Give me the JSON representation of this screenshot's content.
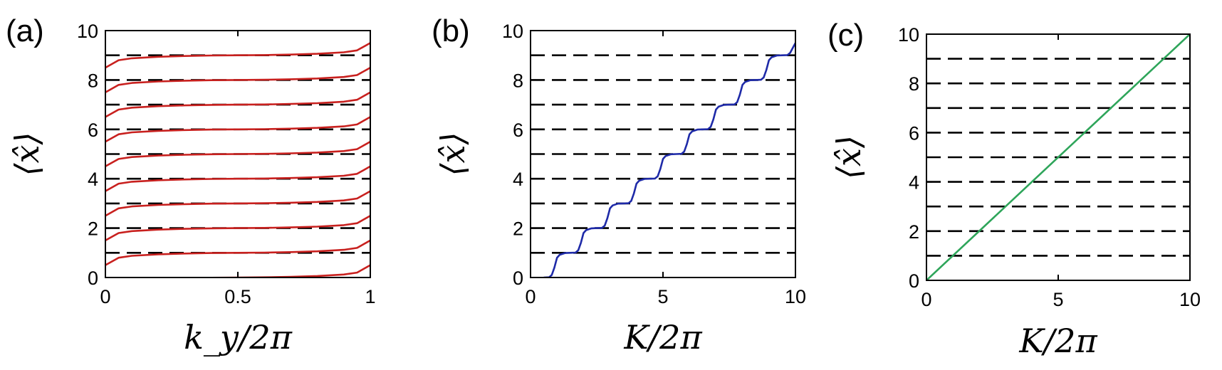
{
  "chart_data": [
    {
      "type": "line",
      "panel_label": "(a)",
      "xlabel": "k_y/2π",
      "ylabel": "⟨x̂⟩",
      "xlim": [
        0,
        1
      ],
      "ylim": [
        0,
        10
      ],
      "xticks": [
        "0",
        "0.5",
        "1"
      ],
      "xtick_values": [
        0,
        0.5,
        1
      ],
      "yticks": [
        "0",
        "2",
        "4",
        "6",
        "8",
        "10"
      ],
      "ytick_values": [
        0,
        2,
        4,
        6,
        8,
        10
      ],
      "dashed_levels": [
        1,
        2,
        3,
        4,
        5,
        6,
        7,
        8,
        9
      ],
      "color": "#c8201e",
      "x": [
        0,
        0.05,
        0.1,
        0.2,
        0.3,
        0.4,
        0.5,
        0.6,
        0.7,
        0.8,
        0.9,
        0.95,
        1
      ],
      "series": [
        {
          "values": [
            -0.5,
            -0.2,
            -0.12,
            -0.06,
            -0.03,
            -0.01,
            0.0,
            0.01,
            0.03,
            0.06,
            0.12,
            0.2,
            0.5
          ]
        },
        {
          "values": [
            0.5,
            0.8,
            0.88,
            0.94,
            0.97,
            0.99,
            1.0,
            1.01,
            1.03,
            1.06,
            1.12,
            1.2,
            1.5
          ]
        },
        {
          "values": [
            1.5,
            1.8,
            1.88,
            1.94,
            1.97,
            1.99,
            2.0,
            2.01,
            2.03,
            2.06,
            2.12,
            2.2,
            2.5
          ]
        },
        {
          "values": [
            2.5,
            2.8,
            2.88,
            2.94,
            2.97,
            2.99,
            3.0,
            3.01,
            3.03,
            3.06,
            3.12,
            3.2,
            3.5
          ]
        },
        {
          "values": [
            3.5,
            3.8,
            3.88,
            3.94,
            3.97,
            3.99,
            4.0,
            4.01,
            4.03,
            4.06,
            4.12,
            4.2,
            4.5
          ]
        },
        {
          "values": [
            4.5,
            4.8,
            4.88,
            4.94,
            4.97,
            4.99,
            5.0,
            5.01,
            5.03,
            5.06,
            5.12,
            5.2,
            5.5
          ]
        },
        {
          "values": [
            5.5,
            5.8,
            5.88,
            5.94,
            5.97,
            5.99,
            6.0,
            6.01,
            6.03,
            6.06,
            6.12,
            6.2,
            6.5
          ]
        },
        {
          "values": [
            6.5,
            6.8,
            6.88,
            6.94,
            6.97,
            6.99,
            7.0,
            7.01,
            7.03,
            7.06,
            7.12,
            7.2,
            7.5
          ]
        },
        {
          "values": [
            7.5,
            7.8,
            7.88,
            7.94,
            7.97,
            7.99,
            8.0,
            8.01,
            8.03,
            8.06,
            8.12,
            8.2,
            8.5
          ]
        },
        {
          "values": [
            8.5,
            8.8,
            8.88,
            8.94,
            8.97,
            8.99,
            9.0,
            9.01,
            9.03,
            9.06,
            9.12,
            9.2,
            9.5
          ]
        }
      ]
    },
    {
      "type": "line",
      "panel_label": "(b)",
      "xlabel": "K/2π",
      "ylabel": "⟨x̂⟩",
      "xlim": [
        0,
        10
      ],
      "ylim": [
        0,
        10
      ],
      "xticks": [
        "0",
        "5",
        "10"
      ],
      "xtick_values": [
        0,
        5,
        10
      ],
      "yticks": [
        "0",
        "2",
        "4",
        "6",
        "8",
        "10"
      ],
      "ytick_values": [
        0,
        2,
        4,
        6,
        8,
        10
      ],
      "dashed_levels": [
        1,
        2,
        3,
        4,
        5,
        6,
        7,
        8,
        9
      ],
      "color": "#1e2aa8",
      "x": [
        0.5,
        0.7,
        0.8,
        0.9,
        1.0,
        1.1,
        1.3,
        1.5,
        1.7,
        1.8,
        1.9,
        2.0,
        2.1,
        2.3,
        2.5,
        2.7,
        2.8,
        2.9,
        3.0,
        3.1,
        3.3,
        3.5,
        3.7,
        3.8,
        3.9,
        4.0,
        4.1,
        4.3,
        4.5,
        4.7,
        4.8,
        4.9,
        5.0,
        5.1,
        5.3,
        5.5,
        5.7,
        5.8,
        5.9,
        6.0,
        6.1,
        6.3,
        6.5,
        6.7,
        6.8,
        6.9,
        7.0,
        7.1,
        7.3,
        7.5,
        7.7,
        7.8,
        7.9,
        8.0,
        8.1,
        8.3,
        8.5,
        8.7,
        8.8,
        8.9,
        9.0,
        9.1,
        9.3,
        9.5,
        9.7,
        9.8,
        9.9,
        10.0
      ],
      "series": [
        {
          "values": [
            0.0,
            0.01,
            0.1,
            0.4,
            0.8,
            0.92,
            0.99,
            1.0,
            1.01,
            1.1,
            1.4,
            1.8,
            1.92,
            1.99,
            2.0,
            2.01,
            2.1,
            2.4,
            2.8,
            2.92,
            2.99,
            3.0,
            3.01,
            3.1,
            3.4,
            3.8,
            3.92,
            3.99,
            4.0,
            4.01,
            4.1,
            4.4,
            4.8,
            4.92,
            4.99,
            5.0,
            5.01,
            5.1,
            5.4,
            5.8,
            5.92,
            5.99,
            6.0,
            6.01,
            6.1,
            6.4,
            6.8,
            6.92,
            6.99,
            7.0,
            7.01,
            7.1,
            7.4,
            7.8,
            7.92,
            7.99,
            8.0,
            8.01,
            8.1,
            8.4,
            8.8,
            8.92,
            8.99,
            9.0,
            9.01,
            9.1,
            9.3,
            9.5
          ]
        }
      ]
    },
    {
      "type": "line",
      "panel_label": "(c)",
      "xlabel": "K/2π",
      "ylabel": "⟨x̂⟩",
      "xlim": [
        0,
        10
      ],
      "ylim": [
        0,
        10
      ],
      "xticks": [
        "0",
        "5",
        "10"
      ],
      "xtick_values": [
        0,
        5,
        10
      ],
      "yticks": [
        "0",
        "2",
        "4",
        "6",
        "8",
        "10"
      ],
      "ytick_values": [
        0,
        2,
        4,
        6,
        8,
        10
      ],
      "dashed_levels": [
        1,
        2,
        3,
        4,
        5,
        6,
        7,
        8,
        9
      ],
      "color": "#2ea55a",
      "x": [
        0,
        10
      ],
      "series": [
        {
          "values": [
            0,
            10
          ]
        }
      ]
    }
  ]
}
